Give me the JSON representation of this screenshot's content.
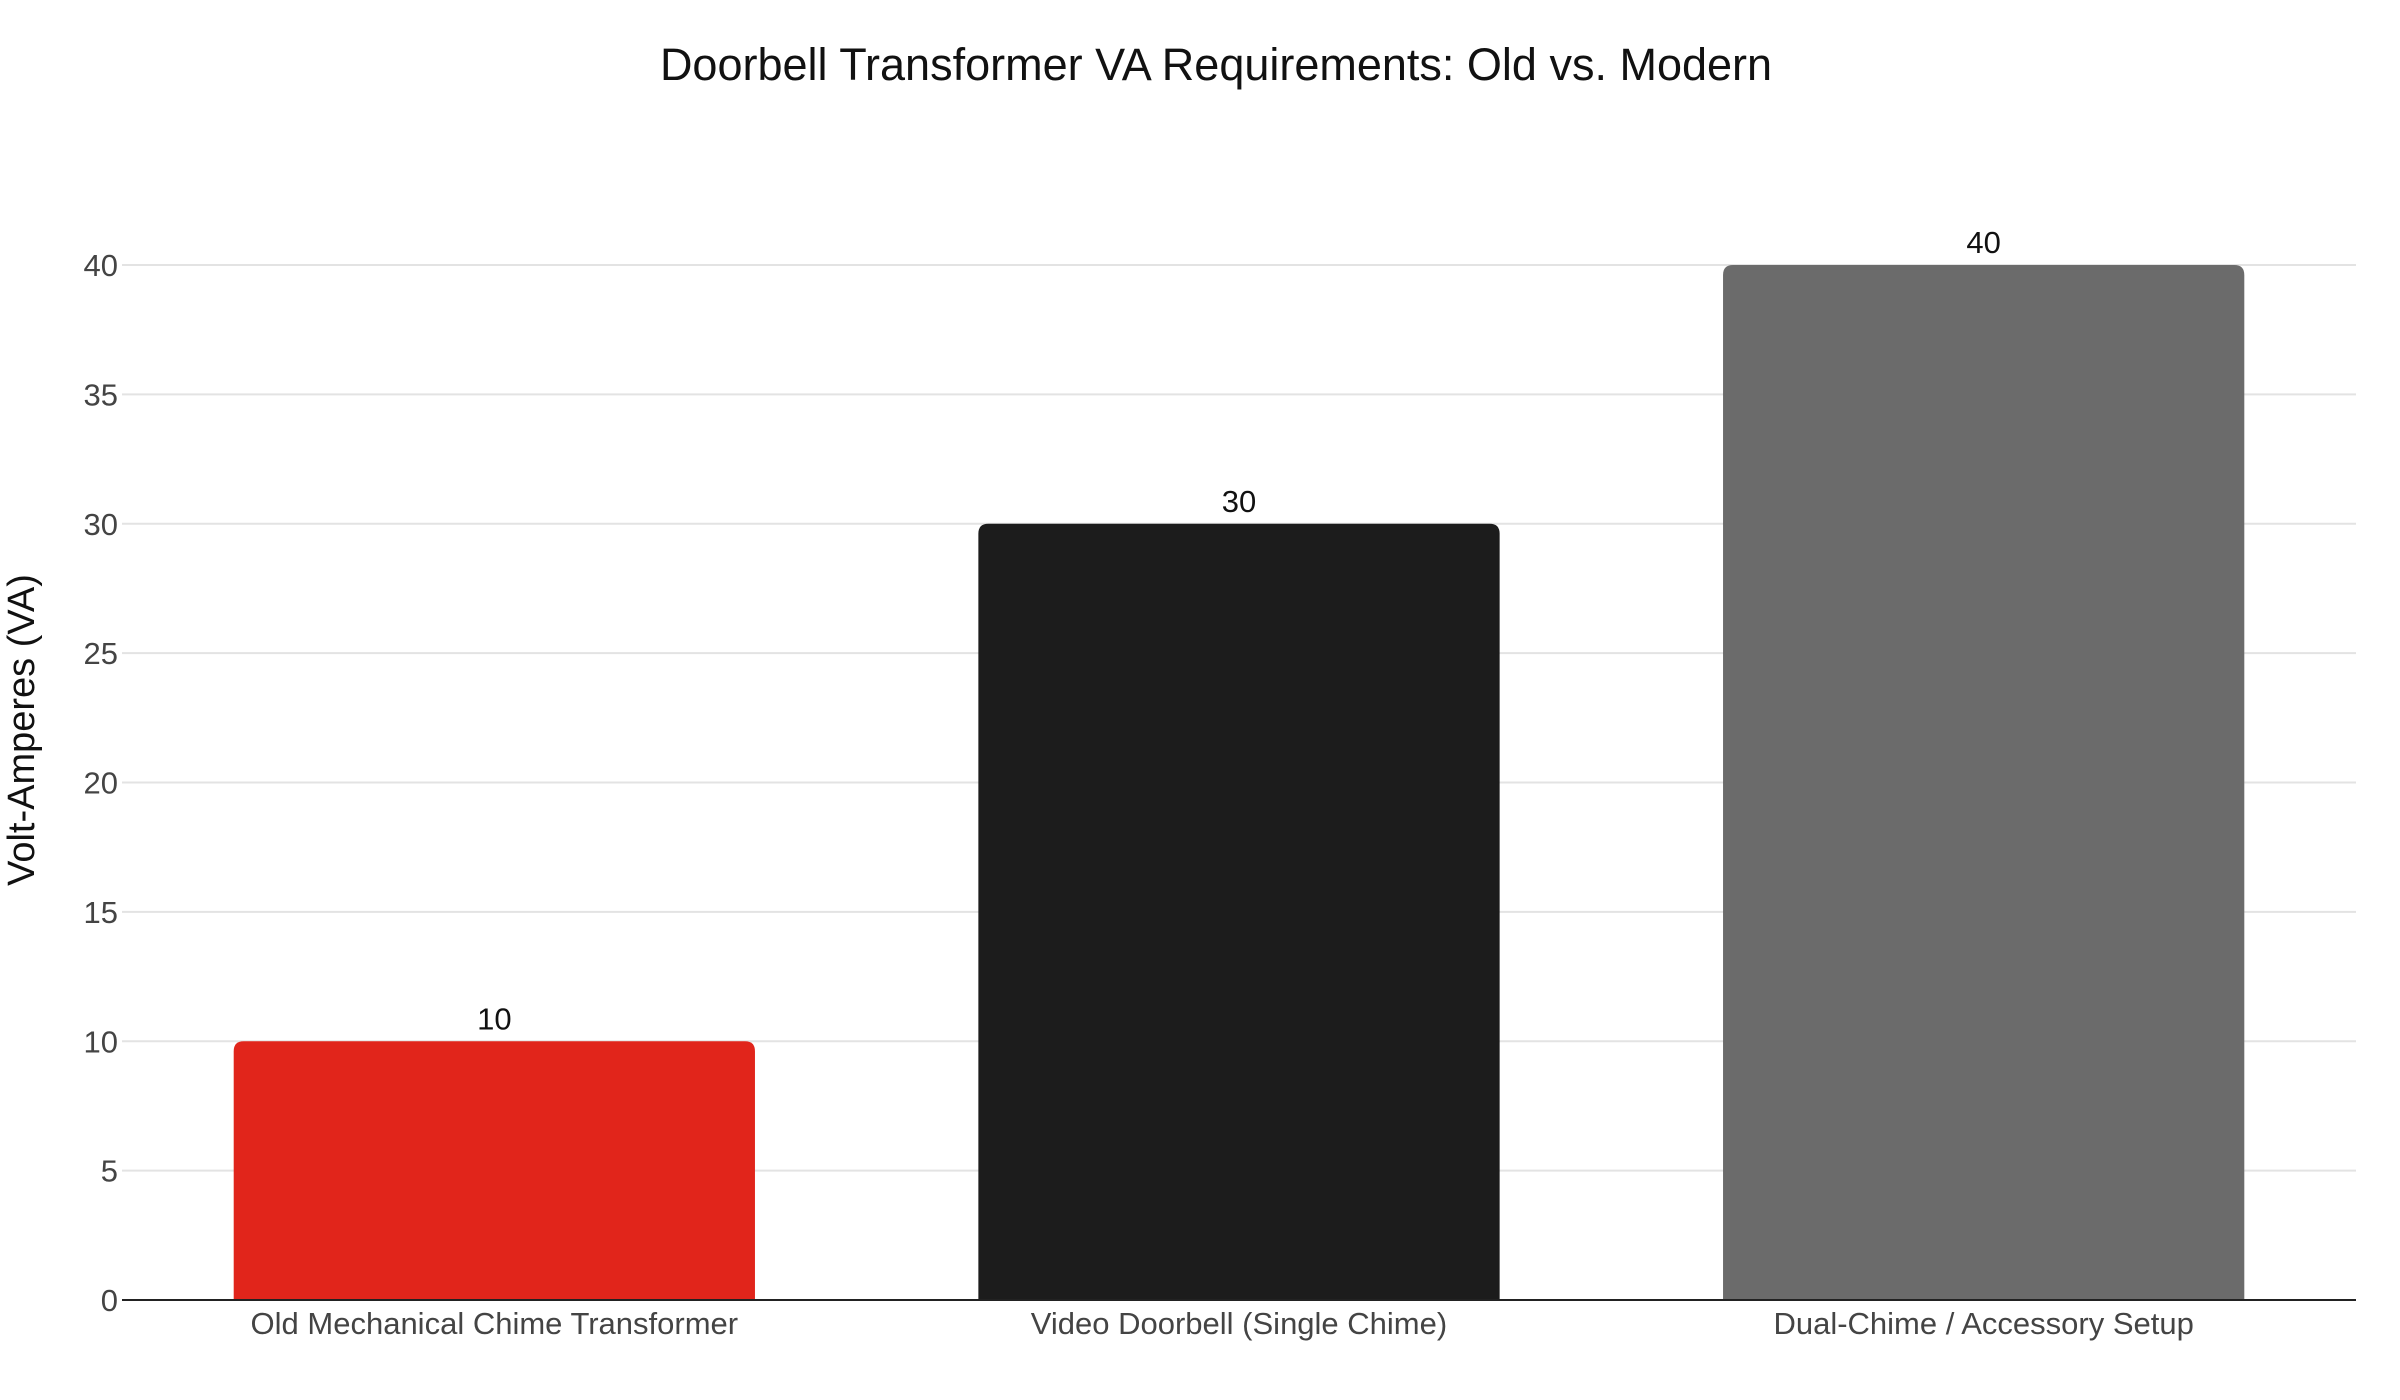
{
  "chart_data": {
    "type": "bar",
    "title": "Doorbell Transformer VA Requirements: Old vs. Modern",
    "xlabel": "",
    "ylabel": "Volt-Amperes (VA)",
    "categories": [
      "Old Mechanical Chime Transformer",
      "Video Doorbell (Single Chime)",
      "Dual-Chime / Accessory Setup"
    ],
    "values": [
      10,
      30,
      40
    ],
    "data_labels": [
      "10",
      "30",
      "40"
    ],
    "colors": [
      "#e1251b",
      "#1c1c1c",
      "#6b6b6b"
    ],
    "ylim": [
      0,
      40
    ],
    "yticks": [
      0,
      5,
      10,
      15,
      20,
      25,
      30,
      35,
      40
    ],
    "grid": true,
    "legend": "none"
  }
}
